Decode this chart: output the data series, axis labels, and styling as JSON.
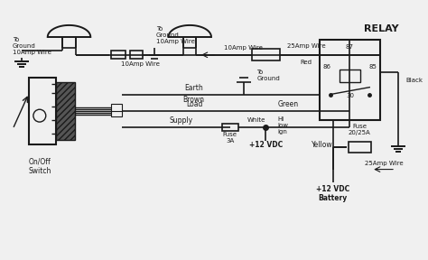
{
  "background_color": "#f0f0f0",
  "line_color": "#1a1a1a",
  "labels": {
    "to_ground_left": "To\nGround\n10Amp Wire",
    "to_ground_top": "To\nGround\n10Amp Wire",
    "10amp_wire_bottom": "10Amp Wire",
    "10amp_wire_arrow": "10Amp Wire",
    "25amp_wire": "25Amp Wire",
    "red": "Red",
    "relay": "RELAY",
    "to_ground_relay": "To\nGround",
    "earth": "Earth",
    "brown": "Brown",
    "load": "Load",
    "green": "Green",
    "supply": "Supply",
    "white": "White",
    "fuse_3a": "Fuse\n3A",
    "hi_low_ign": "Hi\nlow\nign",
    "plus12vdc": "+12 VDC",
    "yellow": "Yellow",
    "fuse_2025a": "Fuse\n20/25A",
    "25amp_wire2": "25Amp Wire",
    "plus12vdc_battery": "+12 VDC\nBattery",
    "black": "Black",
    "on_off_switch": "On/Off\nSwitch",
    "p87": "87",
    "p86": "86",
    "p85": "85",
    "p30": "30"
  }
}
